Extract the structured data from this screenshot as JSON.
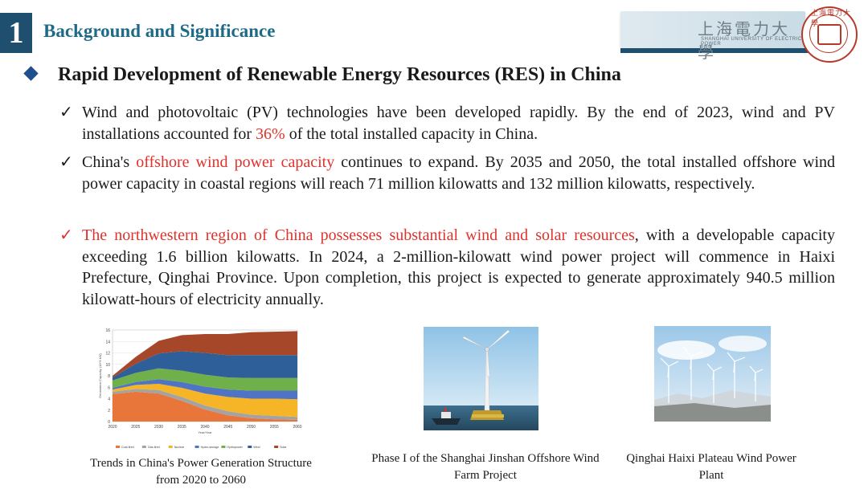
{
  "header": {
    "number": "1",
    "title": "Background and Significance",
    "logo_text": "上海電力大學",
    "logo_subtitle": "SHANGHAI UNIVERSITY OF ELECTRIC POWER",
    "seal_text": "上海電力大學"
  },
  "heading": "Rapid Development of Renewable Energy Resources (RES) in China",
  "bullets": [
    {
      "check": "✓",
      "red_check": false,
      "segments": [
        {
          "text": "Wind and photovoltaic (PV) technologies have been developed rapidly. By the end of 2023, wind and PV installations accounted for ",
          "red": false
        },
        {
          "text": "36%",
          "red": true
        },
        {
          "text": " of the total installed capacity in China.",
          "red": false
        }
      ]
    },
    {
      "check": "✓",
      "red_check": false,
      "segments": [
        {
          "text": "China's ",
          "red": false
        },
        {
          "text": "offshore wind power capacity",
          "red": true
        },
        {
          "text": " continues to expand. By 2035 and 2050, the total installed offshore wind power capacity in coastal regions will reach 71 million kilowatts and 132 million kilowatts, respectively.",
          "red": false
        }
      ]
    },
    {
      "check": "✓",
      "red_check": true,
      "segments": [
        {
          "text": "The northwestern region of China possesses substantial wind and solar resources",
          "red": true
        },
        {
          "text": ", with a developable capacity exceeding 1.6 billion kilowatts. In 2024, a 2-million-kilowatt wind power project will commence in Haixi Prefecture, Qinghai Province. Upon completion, this project is expected to generate approximately 940.5 million kilowatt-hours of electricity annually.",
          "red": false
        }
      ]
    }
  ],
  "captions": {
    "chart": "Trends in China's Power Generation Structure from 2020 to 2060",
    "photo1": "Phase I of the Shanghai Jinshan Offshore Wind Farm Project",
    "photo2": "Qinghai Haixi Plateau Wind Power Plant"
  },
  "chart_data": {
    "type": "area",
    "title": "",
    "xlabel": "Year/Year",
    "ylabel": "Generation Capacity (10^9 kW)",
    "x": [
      2020,
      2025,
      2030,
      2035,
      2040,
      2045,
      2050,
      2055,
      2060
    ],
    "xticks": [
      "2020",
      "2025",
      "2030",
      "2035",
      "2040",
      "2045",
      "2050",
      "2055",
      "2060"
    ],
    "yticks": [
      "0",
      "2",
      "4",
      "6",
      "8",
      "10",
      "12",
      "14",
      "16"
    ],
    "ylim": [
      0,
      16
    ],
    "grid": true,
    "legend_position": "bottom",
    "series": [
      {
        "name": "Coal-fired",
        "color": "#e8763a",
        "values": [
          4.8,
          5.2,
          4.9,
          3.6,
          2.1,
          1.1,
          0.6,
          0.4,
          0.3
        ]
      },
      {
        "name": "Gas-fired",
        "color": "#a3a3a3",
        "values": [
          0.4,
          0.5,
          0.6,
          0.7,
          0.7,
          0.7,
          0.6,
          0.6,
          0.5
        ]
      },
      {
        "name": "Nuclear",
        "color": "#f5b526",
        "values": [
          0.4,
          0.7,
          1.1,
          1.6,
          2.1,
          2.5,
          2.8,
          3.0,
          3.1
        ]
      },
      {
        "name": "Hydro-storage",
        "color": "#4f74c4",
        "values": [
          0.3,
          0.5,
          0.8,
          1.0,
          1.2,
          1.3,
          1.4,
          1.4,
          1.5
        ]
      },
      {
        "name": "Hydropower",
        "color": "#6fb04a",
        "values": [
          1.3,
          1.6,
          1.9,
          2.0,
          2.1,
          2.1,
          2.2,
          2.2,
          2.2
        ]
      },
      {
        "name": "Wind",
        "color": "#2f5f99",
        "values": [
          0.5,
          1.6,
          2.6,
          3.4,
          3.8,
          3.9,
          4.0,
          4.0,
          4.0
        ]
      },
      {
        "name": "Solar",
        "color": "#a6472a",
        "values": [
          0.3,
          1.2,
          2.2,
          2.8,
          3.3,
          3.7,
          4.0,
          4.1,
          4.2
        ]
      }
    ]
  }
}
